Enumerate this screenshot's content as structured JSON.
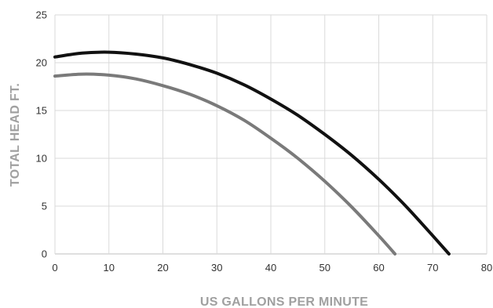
{
  "chart_data": {
    "type": "line",
    "title": "",
    "xlabel": "US GALLONS PER MINUTE",
    "ylabel": "TOTAL HEAD FT.",
    "xlim": [
      0,
      80
    ],
    "ylim": [
      0,
      25
    ],
    "x_ticks": [
      0,
      10,
      20,
      30,
      40,
      50,
      60,
      70,
      80
    ],
    "y_ticks": [
      0,
      5,
      10,
      15,
      20,
      25
    ],
    "grid": true,
    "legend": "none",
    "series": [
      {
        "color": "#111111",
        "x": [
          0,
          5,
          10,
          15,
          20,
          25,
          30,
          35,
          40,
          45,
          50,
          55,
          60,
          65,
          70,
          73
        ],
        "y": [
          20.6,
          21.0,
          21.1,
          20.9,
          20.5,
          19.8,
          18.9,
          17.7,
          16.2,
          14.5,
          12.5,
          10.3,
          7.8,
          5.0,
          1.9,
          0
        ]
      },
      {
        "color": "#7a7a7a",
        "x": [
          0,
          5,
          10,
          15,
          20,
          25,
          30,
          35,
          40,
          45,
          50,
          55,
          60,
          63
        ],
        "y": [
          18.6,
          18.8,
          18.7,
          18.3,
          17.6,
          16.7,
          15.5,
          14.0,
          12.1,
          10.0,
          7.6,
          4.9,
          1.9,
          0
        ]
      }
    ]
  }
}
